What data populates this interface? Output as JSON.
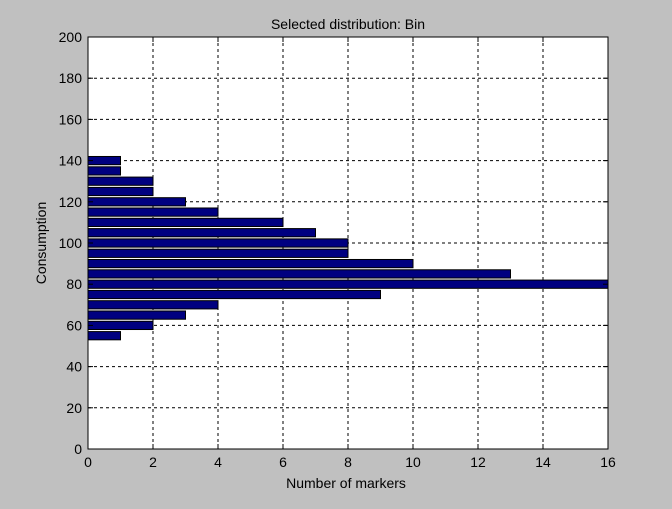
{
  "chart_data": {
    "type": "bar",
    "orientation": "horizontal",
    "title": "Selected distribution: Bin",
    "xlabel": "Number of markers",
    "ylabel": "Consumption",
    "xlim": [
      0,
      16
    ],
    "ylim": [
      0,
      200
    ],
    "xticks": [
      0,
      2,
      4,
      6,
      8,
      10,
      12,
      14,
      16
    ],
    "yticks": [
      0,
      20,
      40,
      60,
      80,
      100,
      120,
      140,
      160,
      180,
      200
    ],
    "grid": true,
    "categories": [
      55,
      60,
      65,
      70,
      75,
      80,
      85,
      90,
      95,
      100,
      105,
      110,
      115,
      120,
      125,
      130,
      135,
      140
    ],
    "values": [
      1,
      2,
      3,
      4,
      9,
      16,
      13,
      10,
      8,
      8,
      7,
      6,
      4,
      3,
      2,
      2,
      1,
      1
    ],
    "bar_color": "#000080",
    "background": "#c0c0c0",
    "plot_background": "#ffffff"
  }
}
